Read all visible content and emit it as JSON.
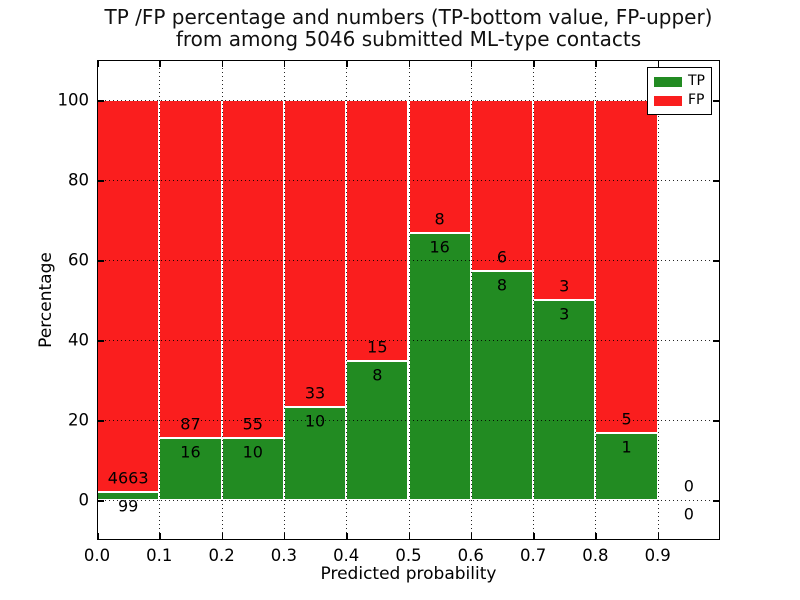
{
  "title": {
    "line1": "TP /FP percentage and numbers (TP-bottom value, FP-upper)",
    "line2": "from among 5046 submitted ML-type contacts"
  },
  "legend": {
    "items": [
      {
        "label": "TP",
        "color": "#228b22"
      },
      {
        "label": "FP",
        "color": "#fa1e1e"
      }
    ]
  },
  "chart_data": {
    "type": "bar",
    "stacked": true,
    "normalized_to_percent": true,
    "title": "TP /FP percentage and numbers (TP-bottom value, FP-upper) from among 5046 submitted ML-type contacts",
    "xlabel": "Predicted probability",
    "ylabel": "Percentage",
    "xlim": [
      0.0,
      1.0
    ],
    "ylim": [
      -10,
      110
    ],
    "xticks": [
      "0.0",
      "0.1",
      "0.2",
      "0.3",
      "0.4",
      "0.5",
      "0.6",
      "0.7",
      "0.8",
      "0.9"
    ],
    "yticks": [
      0,
      20,
      40,
      60,
      80,
      100
    ],
    "grid": "dotted",
    "legend_position": "upper right",
    "total_submitted": 5046,
    "bin_edges": [
      0.0,
      0.1,
      0.2,
      0.3,
      0.4,
      0.5,
      0.6,
      0.7,
      0.8,
      0.9,
      1.0
    ],
    "series": [
      {
        "name": "TP",
        "color": "#228b22",
        "counts": [
          99,
          16,
          10,
          10,
          8,
          16,
          8,
          3,
          1,
          0
        ]
      },
      {
        "name": "FP",
        "color": "#fa1e1e",
        "counts": [
          4663,
          87,
          55,
          33,
          15,
          8,
          6,
          3,
          5,
          0
        ]
      }
    ],
    "tp_percent_per_bin": [
      2.08,
      15.53,
      15.38,
      23.26,
      34.78,
      66.67,
      57.14,
      50.0,
      16.67,
      0
    ]
  }
}
